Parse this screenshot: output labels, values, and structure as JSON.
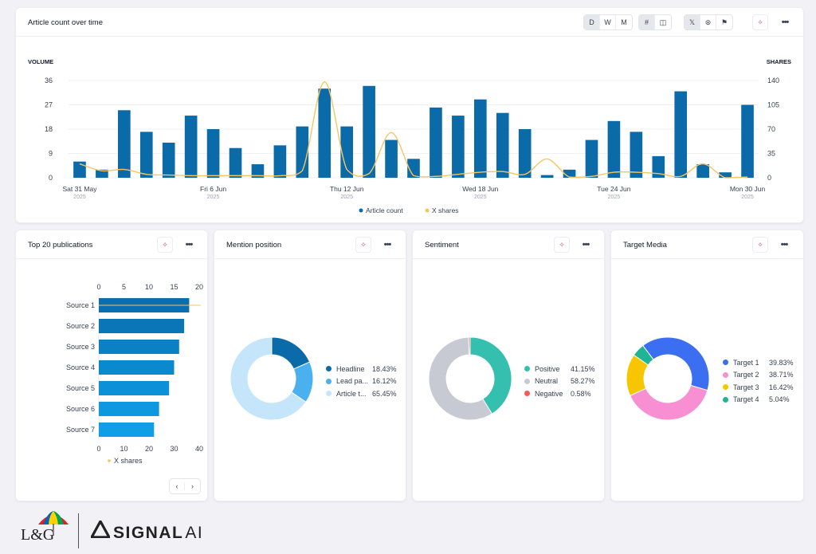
{
  "main_chart": {
    "title": "Article count over time",
    "view_buttons": [
      "D",
      "W",
      "M"
    ],
    "active_view": "D",
    "left_axis_title": "VOLUME",
    "right_axis_title": "SHARES",
    "legend": {
      "article_count": "Article count",
      "x_shares": "X shares"
    }
  },
  "top20": {
    "title": "Top 20 publications",
    "legend": "X shares"
  },
  "mention": {
    "title": "Mention position",
    "legend": [
      {
        "label": "Headline",
        "pct": "18.43%",
        "color": "#0b6aa8"
      },
      {
        "label": "Lead pa...",
        "pct": "16.12%",
        "color": "#4bb0ee"
      },
      {
        "label": "Article t...",
        "pct": "65.45%",
        "color": "#c4e5fa"
      }
    ]
  },
  "sentiment": {
    "title": "Sentiment",
    "legend": [
      {
        "label": "Positive",
        "pct": "41.15%",
        "color": "#35bfaf"
      },
      {
        "label": "Neutral",
        "pct": "58.27%",
        "color": "#c7c9d3"
      },
      {
        "label": "Negative",
        "pct": "0.58%",
        "color": "#f05b5b"
      }
    ]
  },
  "target": {
    "title": "Target Media",
    "legend": [
      {
        "label": "Target 1",
        "pct": "39.83%",
        "color": "#3b6ef0"
      },
      {
        "label": "Target 2",
        "pct": "38.71%",
        "color": "#f78fd2"
      },
      {
        "label": "Target 3",
        "pct": "16.42%",
        "color": "#f7c600"
      },
      {
        "label": "Target 4",
        "pct": "5.04%",
        "color": "#1fb496"
      }
    ]
  },
  "footer": {
    "lg_logo": "L&G",
    "signal_logo_main": "SIGNAL",
    "signal_logo_ai": "AI"
  },
  "chart_data": [
    {
      "type": "bar",
      "title": "Article count over time",
      "series": [
        {
          "name": "Article count",
          "type": "bar",
          "axis": "left",
          "color": "#0b6aa8",
          "values": [
            6,
            3,
            25,
            17,
            13,
            23,
            18,
            11,
            5,
            12,
            19,
            33,
            19,
            34,
            14,
            7,
            26,
            23,
            29,
            24,
            18,
            1,
            3,
            14,
            21,
            17,
            8,
            32,
            5,
            2,
            27
          ]
        },
        {
          "name": "X shares",
          "type": "line",
          "axis": "right",
          "color": "#f6c560",
          "values": [
            20,
            10,
            12,
            5,
            4,
            3,
            3,
            3,
            3,
            3,
            10,
            138,
            12,
            6,
            65,
            3,
            2,
            5,
            8,
            9,
            5,
            27,
            1,
            2,
            8,
            8,
            6,
            2,
            20,
            0,
            1
          ]
        }
      ],
      "x_labels": [
        {
          "index": 1,
          "label": "Sat 31 May",
          "sub": "2025"
        },
        {
          "index": 7,
          "label": "Fri 6 Jun",
          "sub": "2025"
        },
        {
          "index": 13,
          "label": "Thu 12 Jun",
          "sub": "2025"
        },
        {
          "index": 19,
          "label": "Wed 18 Jun",
          "sub": "2025"
        },
        {
          "index": 25,
          "label": "Tue 24 Jun",
          "sub": "2025"
        },
        {
          "index": 31,
          "label": "Mon 30 Jun",
          "sub": "2025"
        }
      ],
      "ylabel": "VOLUME",
      "y2label": "SHARES",
      "ylim": [
        0,
        36
      ],
      "yticks": [
        0,
        9,
        18,
        27,
        36
      ],
      "y2lim": [
        0,
        140
      ],
      "y2ticks": [
        0,
        35,
        70,
        105,
        140
      ]
    },
    {
      "type": "bar",
      "orientation": "horizontal",
      "title": "Top 20 publications",
      "categories": [
        "Source 1",
        "Source 2",
        "Source 3",
        "Source 4",
        "Source 5",
        "Source 6",
        "Source 7"
      ],
      "values": [
        18,
        17,
        16,
        15,
        14,
        12,
        11
      ],
      "bottom_axis_ticks": [
        0,
        10,
        20,
        30,
        40
      ],
      "top_axis_ticks": [
        0,
        5,
        10,
        15,
        20
      ],
      "series": [
        {
          "name": "X shares"
        }
      ]
    },
    {
      "type": "pie",
      "title": "Mention position",
      "labels": [
        "Headline",
        "Lead pa...",
        "Article t..."
      ],
      "values": [
        18.43,
        16.12,
        65.45
      ]
    },
    {
      "type": "pie",
      "title": "Sentiment",
      "labels": [
        "Positive",
        "Neutral",
        "Negative"
      ],
      "values": [
        41.15,
        58.27,
        0.58
      ]
    },
    {
      "type": "pie",
      "title": "Target Media",
      "labels": [
        "Target 1",
        "Target 2",
        "Target 3",
        "Target 4"
      ],
      "values": [
        39.83,
        38.71,
        16.42,
        5.04
      ]
    }
  ]
}
